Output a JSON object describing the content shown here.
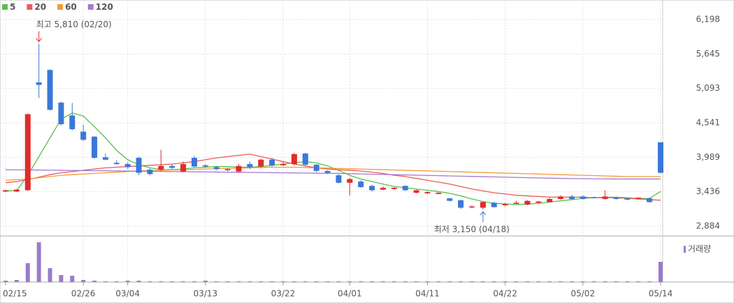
{
  "chart_data": {
    "type": "candlestick",
    "categories": [
      "02/15",
      null,
      null,
      null,
      null,
      null,
      null,
      "02/26",
      null,
      null,
      null,
      "03/04",
      null,
      null,
      null,
      null,
      null,
      null,
      "03/13",
      null,
      null,
      null,
      null,
      null,
      null,
      "03/22",
      null,
      null,
      null,
      null,
      null,
      "04/01",
      null,
      null,
      null,
      null,
      null,
      null,
      "04/11",
      null,
      null,
      null,
      null,
      null,
      null,
      "04/22",
      null,
      null,
      null,
      null,
      null,
      null,
      "05/02",
      null,
      null,
      null,
      null,
      null,
      null,
      "05/14"
    ],
    "open": [
      3440,
      3440,
      3460,
      5190,
      5390,
      4865,
      4660,
      4400,
      4320,
      3990,
      3900,
      3880,
      3980,
      3790,
      3790,
      3850,
      3760,
      3980,
      3860,
      3830,
      3800,
      3760,
      3880,
      3840,
      3950,
      3860,
      3880,
      4050,
      3870,
      3770,
      3700,
      3580,
      3600,
      3530,
      3470,
      3480,
      3530,
      3420,
      3410,
      3400,
      3330,
      3300,
      3190,
      3180,
      3260,
      3220,
      3250,
      3230,
      3260,
      3270,
      3320,
      3360,
      3360,
      3350,
      3320,
      3340,
      3330,
      3320,
      3330,
      4230
    ],
    "high": [
      3470,
      3480,
      4690,
      5810,
      5400,
      4880,
      4860,
      4510,
      4330,
      4050,
      3940,
      3910,
      4000,
      3810,
      4110,
      3880,
      3920,
      4010,
      3880,
      3850,
      3820,
      3880,
      3920,
      3970,
      3980,
      3920,
      4060,
      4060,
      3880,
      3780,
      3720,
      3660,
      3620,
      3550,
      3520,
      3510,
      3540,
      3470,
      3440,
      3430,
      3340,
      3310,
      3220,
      3280,
      3280,
      3260,
      3290,
      3300,
      3290,
      3340,
      3380,
      3390,
      3380,
      3360,
      3460,
      3350,
      3340,
      3350,
      3340,
      4230
    ],
    "low": [
      3430,
      3430,
      3450,
      4940,
      4740,
      4500,
      4420,
      4250,
      3970,
      3940,
      3870,
      3800,
      3700,
      3700,
      3770,
      3800,
      3750,
      3830,
      3820,
      3780,
      3760,
      3740,
      3800,
      3820,
      3840,
      3850,
      3860,
      3850,
      3750,
      3720,
      3570,
      3380,
      3500,
      3440,
      3460,
      3470,
      3450,
      3410,
      3400,
      3400,
      3280,
      3160,
      3170,
      3150,
      3180,
      3200,
      3240,
      3220,
      3250,
      3260,
      3310,
      3310,
      3310,
      3330,
      3310,
      3310,
      3300,
      3310,
      3260,
      3730
    ],
    "close": [
      3460,
      3470,
      4680,
      5150,
      4750,
      4520,
      4440,
      4270,
      3980,
      3950,
      3880,
      3830,
      3740,
      3720,
      3850,
      3820,
      3880,
      3840,
      3840,
      3800,
      3780,
      3850,
      3830,
      3950,
      3860,
      3880,
      4040,
      3870,
      3770,
      3740,
      3580,
      3640,
      3510,
      3460,
      3500,
      3500,
      3460,
      3460,
      3430,
      3420,
      3290,
      3180,
      3200,
      3270,
      3190,
      3240,
      3260,
      3290,
      3280,
      3320,
      3360,
      3320,
      3320,
      3340,
      3360,
      3320,
      3310,
      3340,
      3270,
      3740
    ],
    "up_color": "#e02b2b",
    "down_color": "#3a78d8",
    "series": [
      {
        "name": "5",
        "color": "#5cbf4c",
        "values": [
          3450,
          3455,
          3700,
          4000,
          4300,
          4600,
          4700,
          4650,
          4480,
          4300,
          4100,
          3950,
          3870,
          3820,
          3790,
          3790,
          3800,
          3820,
          3830,
          3840,
          3840,
          3830,
          3830,
          3840,
          3860,
          3880,
          3900,
          3920,
          3900,
          3850,
          3780,
          3700,
          3640,
          3600,
          3560,
          3520,
          3500,
          3480,
          3460,
          3440,
          3410,
          3370,
          3320,
          3280,
          3250,
          3240,
          3230,
          3240,
          3250,
          3270,
          3290,
          3310,
          3330,
          3340,
          3350,
          3350,
          3340,
          3330,
          3330,
          3440
        ]
      },
      {
        "name": "20",
        "color": "#ec5a5a",
        "values": [
          3580,
          3600,
          3630,
          3670,
          3710,
          3740,
          3760,
          3780,
          3800,
          3820,
          3830,
          3840,
          3850,
          3860,
          3870,
          3880,
          3900,
          3920,
          3950,
          3980,
          4000,
          4020,
          4040,
          4000,
          3960,
          3920,
          3880,
          3850,
          3820,
          3800,
          3790,
          3780,
          3770,
          3750,
          3730,
          3700,
          3680,
          3650,
          3620,
          3590,
          3560,
          3520,
          3480,
          3450,
          3420,
          3400,
          3380,
          3370,
          3360,
          3350,
          3350,
          3350,
          3350,
          3340,
          3340,
          3340,
          3330,
          3320,
          3310,
          3300
        ]
      },
      {
        "name": "60",
        "color": "#f39a3a",
        "values": [
          3620,
          3630,
          3640,
          3660,
          3680,
          3700,
          3710,
          3720,
          3730,
          3740,
          3750,
          3760,
          3770,
          3775,
          3780,
          3785,
          3790,
          3795,
          3800,
          3805,
          3810,
          3815,
          3820,
          3825,
          3830,
          3830,
          3830,
          3825,
          3820,
          3815,
          3810,
          3805,
          3800,
          3795,
          3790,
          3785,
          3780,
          3775,
          3770,
          3765,
          3760,
          3755,
          3750,
          3745,
          3740,
          3735,
          3730,
          3725,
          3720,
          3715,
          3710,
          3705,
          3700,
          3695,
          3690,
          3685,
          3680,
          3680,
          3680,
          3680
        ]
      },
      {
        "name": "120",
        "color": "#a778d0",
        "values": [
          3790,
          3788,
          3786,
          3784,
          3782,
          3780,
          3778,
          3776,
          3774,
          3772,
          3770,
          3768,
          3766,
          3764,
          3762,
          3760,
          3758,
          3756,
          3754,
          3752,
          3750,
          3748,
          3746,
          3744,
          3742,
          3740,
          3738,
          3736,
          3734,
          3732,
          3730,
          3726,
          3722,
          3718,
          3714,
          3710,
          3706,
          3702,
          3698,
          3694,
          3690,
          3686,
          3682,
          3678,
          3674,
          3670,
          3666,
          3662,
          3658,
          3654,
          3650,
          3648,
          3646,
          3644,
          3642,
          3640,
          3640,
          3640,
          3640,
          3640
        ]
      }
    ],
    "ylim": [
      2738,
      6310
    ],
    "yticks": [
      {
        "value": 6198,
        "label": "6,198"
      },
      {
        "value": 5645,
        "label": "5,645"
      },
      {
        "value": 5093,
        "label": "5,093"
      },
      {
        "value": 4541,
        "label": "4,541"
      },
      {
        "value": 3989,
        "label": "3,989"
      },
      {
        "value": 3436,
        "label": "3,436"
      },
      {
        "value": 2884,
        "label": "2,884"
      }
    ],
    "grid": true,
    "annotations": [
      {
        "text": "최고 5,810 (02/20)",
        "value": 5810,
        "kind": "high",
        "color": "#e02b2b"
      },
      {
        "text": "최저 3,150 (04/18)",
        "value": 3150,
        "kind": "low",
        "color": "#3a78d8"
      }
    ],
    "volume": {
      "name": "거래량",
      "color": "#9a7bcc",
      "ylim": [
        0,
        62
      ],
      "values": [
        2,
        3,
        27,
        57,
        20,
        10,
        9,
        3,
        2,
        1,
        1,
        2,
        2,
        1,
        1,
        1,
        1,
        1,
        2,
        1,
        1,
        1,
        1,
        1,
        1,
        1,
        1,
        1,
        1,
        1,
        1,
        1,
        1,
        1,
        1,
        1,
        1,
        1,
        1,
        1,
        1,
        1,
        1,
        1,
        1,
        1,
        1,
        1,
        1,
        1,
        1,
        1,
        1,
        1,
        1,
        1,
        1,
        1,
        1,
        29
      ]
    }
  }
}
